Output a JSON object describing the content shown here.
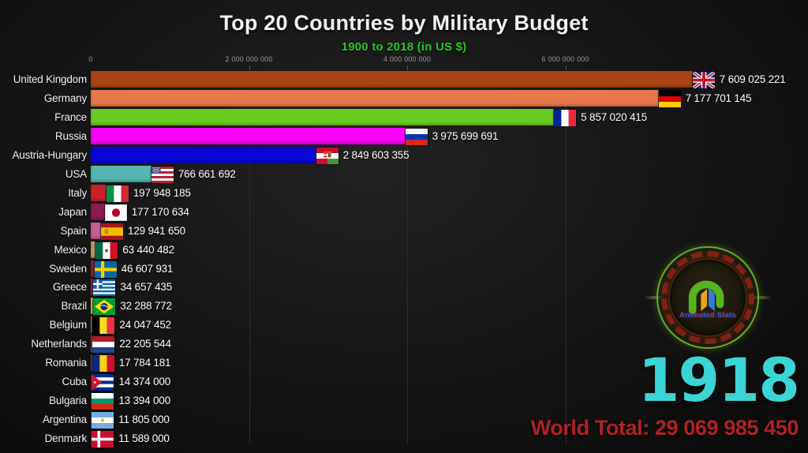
{
  "title": "Top 20 Countries by Military Budget",
  "subtitle": "1900 to 2018 (in US $)",
  "year": "1918",
  "world_total_text": "World Total: 29 069 985 450",
  "watermark": {
    "label": "Animated Stats",
    "icon": "animated-stats-logo-icon"
  },
  "colors": {
    "background": "#161616",
    "title": "#f2f2f2",
    "subtitle_green": "#22c722",
    "year_teal": "#3ad5d5",
    "world_total_red": "#b02222",
    "tick_gray": "#9b9b9b",
    "watermark_blue": "#2a5fd6"
  },
  "chart_data": {
    "type": "bar",
    "orientation": "horizontal",
    "title": "Top 20 Countries by Military Budget",
    "subtitle": "1900 to 2018 (in US $)",
    "year_shown": 1918,
    "world_total": 29069985450,
    "unit": "US $",
    "xlim": [
      0,
      7900000000
    ],
    "grid": true,
    "x_ticks": [
      {
        "value": 0,
        "label": "0"
      },
      {
        "value": 2000000000,
        "label": "2 000 000 000"
      },
      {
        "value": 4000000000,
        "label": "4 000 000 000"
      },
      {
        "value": 6000000000,
        "label": "6 000 000 000"
      }
    ],
    "rows": [
      {
        "country": "United Kingdom",
        "value": 7609025221,
        "value_label": "7 609 025 221",
        "color": "#ab4412",
        "flag": "uk",
        "flag_icon": "united-kingdom-flag-icon"
      },
      {
        "country": "Germany",
        "value": 7177701145,
        "value_label": "7 177 701 145",
        "color": "#e7794a",
        "flag": "de",
        "flag_icon": "germany-flag-icon"
      },
      {
        "country": "France",
        "value": 5857020415,
        "value_label": "5 857 020 415",
        "color": "#68cc21",
        "flag": "fr",
        "flag_icon": "france-flag-icon"
      },
      {
        "country": "Russia",
        "value": 3975699691,
        "value_label": "3 975 699 691",
        "color": "#fb02f6",
        "flag": "ru",
        "flag_icon": "russia-flag-icon"
      },
      {
        "country": "Austria-Hungary",
        "value": 2849603355,
        "value_label": "2 849 603 355",
        "color": "#0a05d6",
        "flag": "ah",
        "flag_icon": "austria-hungary-flag-icon"
      },
      {
        "country": "USA",
        "value": 766661692,
        "value_label": "766 661 692",
        "color": "#55b6b0",
        "flag": "us",
        "flag_icon": "usa-flag-icon"
      },
      {
        "country": "Italy",
        "value": 197948185,
        "value_label": "197 948 185",
        "color": "#c92127",
        "flag": "it",
        "flag_icon": "italy-flag-icon"
      },
      {
        "country": "Japan",
        "value": 177170634,
        "value_label": "177 170 634",
        "color": "#8e1a53",
        "flag": "jp",
        "flag_icon": "japan-flag-icon"
      },
      {
        "country": "Spain",
        "value": 129941650,
        "value_label": "129 941 650",
        "color": "#c26092",
        "flag": "es",
        "flag_icon": "spain-flag-icon"
      },
      {
        "country": "Mexico",
        "value": 63440482,
        "value_label": "63 440 482",
        "color": "#c09a6a",
        "flag": "mx",
        "flag_icon": "mexico-flag-icon"
      },
      {
        "country": "Sweden",
        "value": 46607931,
        "value_label": "46 607 931",
        "color": "#8f2030",
        "flag": "se",
        "flag_icon": "sweden-flag-icon"
      },
      {
        "country": "Greece",
        "value": 34657435,
        "value_label": "34 657 435",
        "color": "#8c2a5e",
        "flag": "gr",
        "flag_icon": "greece-flag-icon"
      },
      {
        "country": "Brazil",
        "value": 32288772,
        "value_label": "32 288 772",
        "color": "#d8c633",
        "flag": "br",
        "flag_icon": "brazil-flag-icon"
      },
      {
        "country": "Belgium",
        "value": 24047452,
        "value_label": "24 047 452",
        "color": "#958a7d",
        "flag": "be",
        "flag_icon": "belgium-flag-icon"
      },
      {
        "country": "Netherlands",
        "value": 22205544,
        "value_label": "22 205 544",
        "color": "#b05050",
        "flag": "nl",
        "flag_icon": "netherlands-flag-icon"
      },
      {
        "country": "Romania",
        "value": 17784181,
        "value_label": "17 784 181",
        "color": "#c03838",
        "flag": "ro",
        "flag_icon": "romania-flag-icon"
      },
      {
        "country": "Cuba",
        "value": 14374000,
        "value_label": "14 374 000",
        "color": "#3a7a8a",
        "flag": "cu",
        "flag_icon": "cuba-flag-icon"
      },
      {
        "country": "Bulgaria",
        "value": 13394000,
        "value_label": "13 394 000",
        "color": "#4a8a4a",
        "flag": "bg",
        "flag_icon": "bulgaria-flag-icon"
      },
      {
        "country": "Argentina",
        "value": 11805000,
        "value_label": "11 805 000",
        "color": "#6aa0c8",
        "flag": "ar",
        "flag_icon": "argentina-flag-icon"
      },
      {
        "country": "Denmark",
        "value": 11589000,
        "value_label": "11 589 000",
        "color": "#c33b3b",
        "flag": "dk",
        "flag_icon": "denmark-flag-icon"
      }
    ]
  }
}
